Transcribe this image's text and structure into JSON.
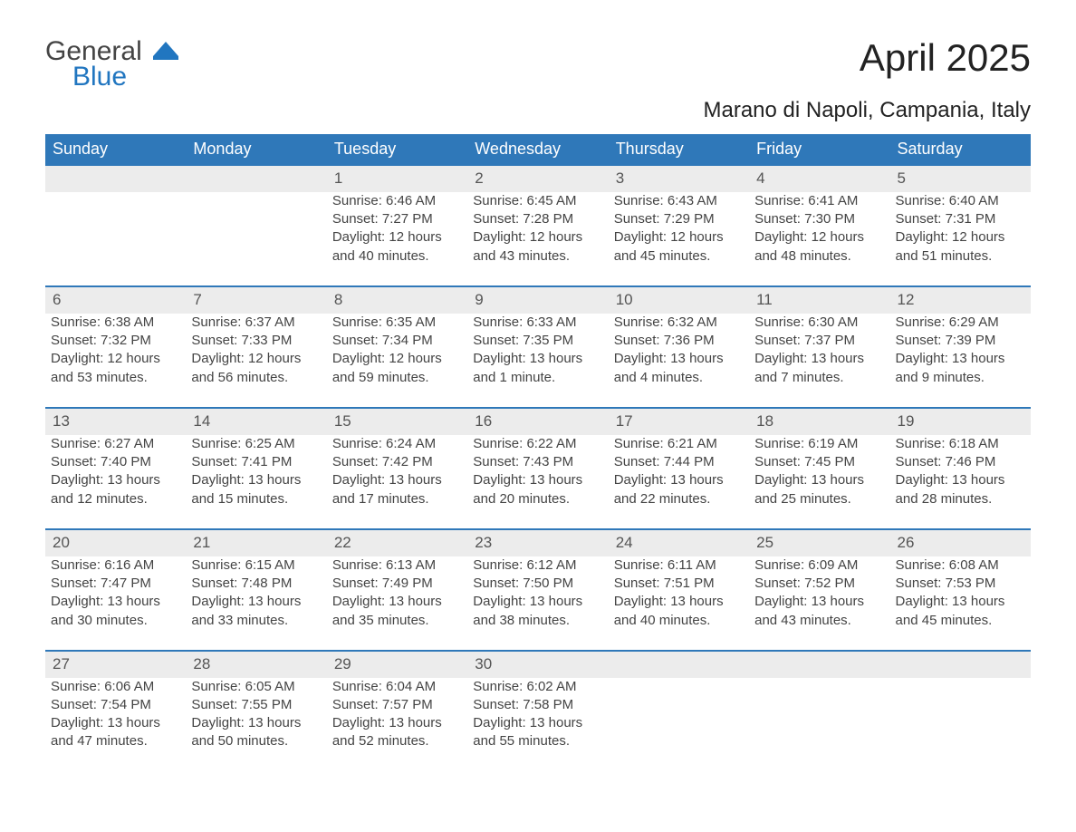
{
  "logo": {
    "general": "General",
    "blue": "Blue"
  },
  "title": "April 2025",
  "location": "Marano di Napoli, Campania, Italy",
  "colors": {
    "header_bg": "#2f78b9",
    "header_text": "#ffffff",
    "daynum_bg": "#ececec",
    "daynum_border": "#2f78b9",
    "body_text": "#444444",
    "logo_blue": "#2176c0",
    "page_bg": "#ffffff"
  },
  "day_headers": [
    "Sunday",
    "Monday",
    "Tuesday",
    "Wednesday",
    "Thursday",
    "Friday",
    "Saturday"
  ],
  "weeks": [
    [
      null,
      null,
      {
        "n": "1",
        "sunrise": "6:46 AM",
        "sunset": "7:27 PM",
        "daylight": "12 hours and 40 minutes."
      },
      {
        "n": "2",
        "sunrise": "6:45 AM",
        "sunset": "7:28 PM",
        "daylight": "12 hours and 43 minutes."
      },
      {
        "n": "3",
        "sunrise": "6:43 AM",
        "sunset": "7:29 PM",
        "daylight": "12 hours and 45 minutes."
      },
      {
        "n": "4",
        "sunrise": "6:41 AM",
        "sunset": "7:30 PM",
        "daylight": "12 hours and 48 minutes."
      },
      {
        "n": "5",
        "sunrise": "6:40 AM",
        "sunset": "7:31 PM",
        "daylight": "12 hours and 51 minutes."
      }
    ],
    [
      {
        "n": "6",
        "sunrise": "6:38 AM",
        "sunset": "7:32 PM",
        "daylight": "12 hours and 53 minutes."
      },
      {
        "n": "7",
        "sunrise": "6:37 AM",
        "sunset": "7:33 PM",
        "daylight": "12 hours and 56 minutes."
      },
      {
        "n": "8",
        "sunrise": "6:35 AM",
        "sunset": "7:34 PM",
        "daylight": "12 hours and 59 minutes."
      },
      {
        "n": "9",
        "sunrise": "6:33 AM",
        "sunset": "7:35 PM",
        "daylight": "13 hours and 1 minute."
      },
      {
        "n": "10",
        "sunrise": "6:32 AM",
        "sunset": "7:36 PM",
        "daylight": "13 hours and 4 minutes."
      },
      {
        "n": "11",
        "sunrise": "6:30 AM",
        "sunset": "7:37 PM",
        "daylight": "13 hours and 7 minutes."
      },
      {
        "n": "12",
        "sunrise": "6:29 AM",
        "sunset": "7:39 PM",
        "daylight": "13 hours and 9 minutes."
      }
    ],
    [
      {
        "n": "13",
        "sunrise": "6:27 AM",
        "sunset": "7:40 PM",
        "daylight": "13 hours and 12 minutes."
      },
      {
        "n": "14",
        "sunrise": "6:25 AM",
        "sunset": "7:41 PM",
        "daylight": "13 hours and 15 minutes."
      },
      {
        "n": "15",
        "sunrise": "6:24 AM",
        "sunset": "7:42 PM",
        "daylight": "13 hours and 17 minutes."
      },
      {
        "n": "16",
        "sunrise": "6:22 AM",
        "sunset": "7:43 PM",
        "daylight": "13 hours and 20 minutes."
      },
      {
        "n": "17",
        "sunrise": "6:21 AM",
        "sunset": "7:44 PM",
        "daylight": "13 hours and 22 minutes."
      },
      {
        "n": "18",
        "sunrise": "6:19 AM",
        "sunset": "7:45 PM",
        "daylight": "13 hours and 25 minutes."
      },
      {
        "n": "19",
        "sunrise": "6:18 AM",
        "sunset": "7:46 PM",
        "daylight": "13 hours and 28 minutes."
      }
    ],
    [
      {
        "n": "20",
        "sunrise": "6:16 AM",
        "sunset": "7:47 PM",
        "daylight": "13 hours and 30 minutes."
      },
      {
        "n": "21",
        "sunrise": "6:15 AM",
        "sunset": "7:48 PM",
        "daylight": "13 hours and 33 minutes."
      },
      {
        "n": "22",
        "sunrise": "6:13 AM",
        "sunset": "7:49 PM",
        "daylight": "13 hours and 35 minutes."
      },
      {
        "n": "23",
        "sunrise": "6:12 AM",
        "sunset": "7:50 PM",
        "daylight": "13 hours and 38 minutes."
      },
      {
        "n": "24",
        "sunrise": "6:11 AM",
        "sunset": "7:51 PM",
        "daylight": "13 hours and 40 minutes."
      },
      {
        "n": "25",
        "sunrise": "6:09 AM",
        "sunset": "7:52 PM",
        "daylight": "13 hours and 43 minutes."
      },
      {
        "n": "26",
        "sunrise": "6:08 AM",
        "sunset": "7:53 PM",
        "daylight": "13 hours and 45 minutes."
      }
    ],
    [
      {
        "n": "27",
        "sunrise": "6:06 AM",
        "sunset": "7:54 PM",
        "daylight": "13 hours and 47 minutes."
      },
      {
        "n": "28",
        "sunrise": "6:05 AM",
        "sunset": "7:55 PM",
        "daylight": "13 hours and 50 minutes."
      },
      {
        "n": "29",
        "sunrise": "6:04 AM",
        "sunset": "7:57 PM",
        "daylight": "13 hours and 52 minutes."
      },
      {
        "n": "30",
        "sunrise": "6:02 AM",
        "sunset": "7:58 PM",
        "daylight": "13 hours and 55 minutes."
      },
      null,
      null,
      null
    ]
  ],
  "labels": {
    "sunrise": "Sunrise: ",
    "sunset": "Sunset: ",
    "daylight": "Daylight: "
  }
}
